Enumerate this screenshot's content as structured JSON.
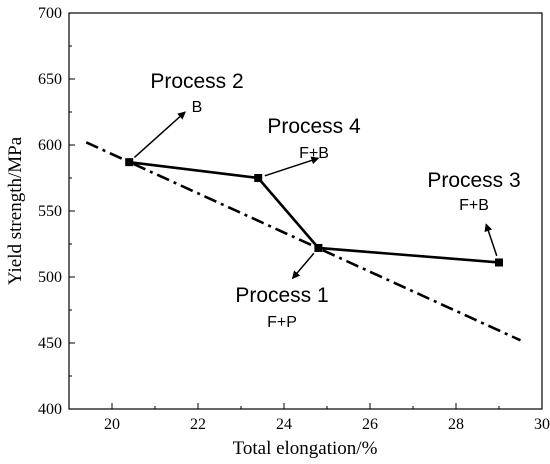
{
  "chart_data": {
    "type": "line",
    "xlabel": "Total elongation/%",
    "ylabel": "Yield strength/MPa",
    "xlim": [
      19,
      30
    ],
    "ylim": [
      400,
      700
    ],
    "xticks": [
      20,
      22,
      24,
      26,
      28,
      30
    ],
    "yticks": [
      400,
      450,
      500,
      550,
      600,
      650,
      700
    ],
    "grid": false,
    "series": [
      {
        "style": "solid line with square markers",
        "color": "#000000",
        "x": [
          20.4,
          23.4,
          24.8,
          29.0
        ],
        "y": [
          587,
          575,
          522,
          511
        ]
      },
      {
        "style": "dash-dot trend line",
        "color": "#000000",
        "x": [
          19.4,
          29.5
        ],
        "y": [
          602,
          452
        ]
      }
    ],
    "annotations": [
      {
        "process": "Process 2",
        "phase": "B",
        "x": 20.4,
        "y": 587,
        "arrow_to": [
          21.7,
          625
        ]
      },
      {
        "process": "Process 4",
        "phase": "F+B",
        "x": 23.4,
        "y": 575,
        "arrow_to": [
          24.8,
          590
        ]
      },
      {
        "process": "Process 1",
        "phase": "F+P",
        "x": 24.8,
        "y": 522,
        "arrow_to": [
          24.2,
          499
        ]
      },
      {
        "process": "Process 3",
        "phase": "F+B",
        "x": 29.0,
        "y": 511,
        "arrow_to": [
          28.7,
          540
        ]
      }
    ]
  }
}
